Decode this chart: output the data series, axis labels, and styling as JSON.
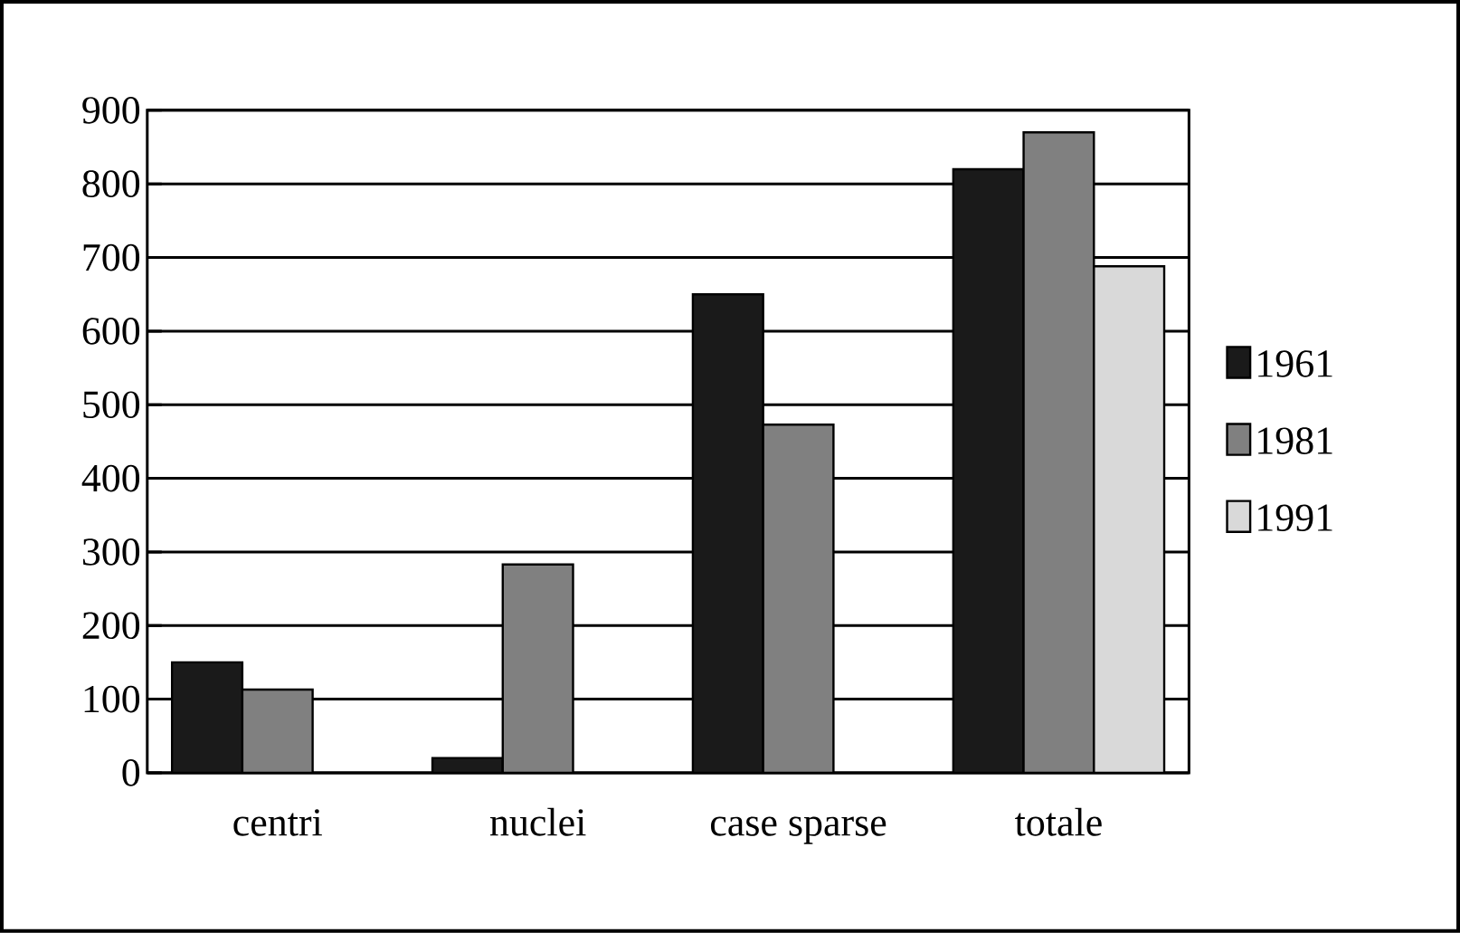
{
  "chart_data": {
    "type": "bar",
    "categories": [
      "centri",
      "nuclei",
      "case sparse",
      "totale"
    ],
    "series": [
      {
        "name": "1961",
        "color": "#1a1a1a",
        "values": [
          150,
          20,
          650,
          820
        ]
      },
      {
        "name": "1981",
        "color": "#808080",
        "values": [
          113,
          283,
          473,
          870
        ]
      },
      {
        "name": "1991",
        "color": "#d9d9d9",
        "values": [
          null,
          null,
          null,
          688
        ]
      }
    ],
    "ylim": [
      0,
      900
    ],
    "yticks": [
      0,
      100,
      200,
      300,
      400,
      500,
      600,
      700,
      800,
      900
    ],
    "grid": "y",
    "legend": "right"
  }
}
